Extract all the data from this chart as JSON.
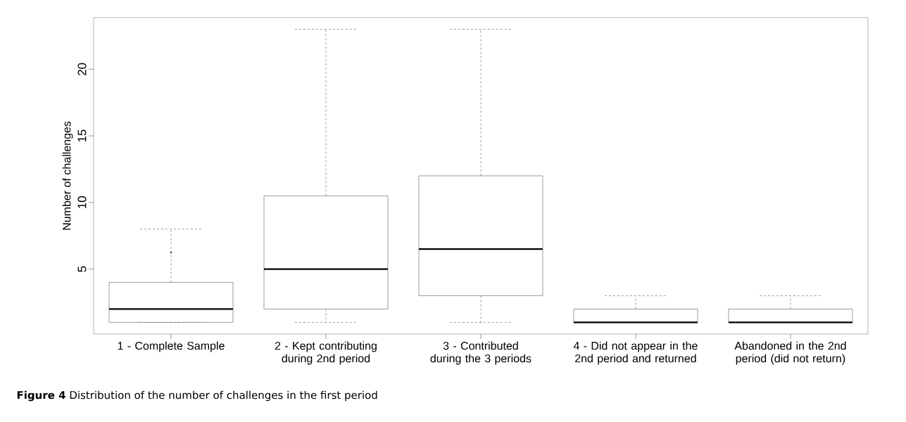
{
  "chart_data": {
    "type": "box",
    "title": "**Figure 4** Distribution of the number of challenges in the first period",
    "ylabel": "Number of challenges",
    "categories": [
      "1 - Complete Sample",
      "2 - Kept contributing during 2nd period",
      "3 - Contributed during the 3 periods",
      "4 - Did not appear in the 2nd period and returned",
      "Abandoned in the 2nd period (did not return)"
    ],
    "boxes": [
      {
        "low": 1,
        "q1": 1,
        "median": 2,
        "q3": 4,
        "high": 8,
        "outliers": [
          6.25
        ]
      },
      {
        "low": 1,
        "q1": 2,
        "median": 5,
        "q3": 10.5,
        "high": 23
      },
      {
        "low": 1,
        "q1": 3,
        "median": 6.5,
        "q3": 12,
        "high": 23
      },
      {
        "low": 1,
        "q1": 1,
        "median": 1,
        "q3": 2,
        "high": 3
      },
      {
        "low": 1,
        "q1": 1,
        "median": 1,
        "q3": 2,
        "high": 3
      }
    ],
    "color": "#000000",
    "ylim": [
      0.12,
      23.88
    ],
    "yticks": [
      5,
      10,
      15,
      20
    ],
    "grid": false
  }
}
